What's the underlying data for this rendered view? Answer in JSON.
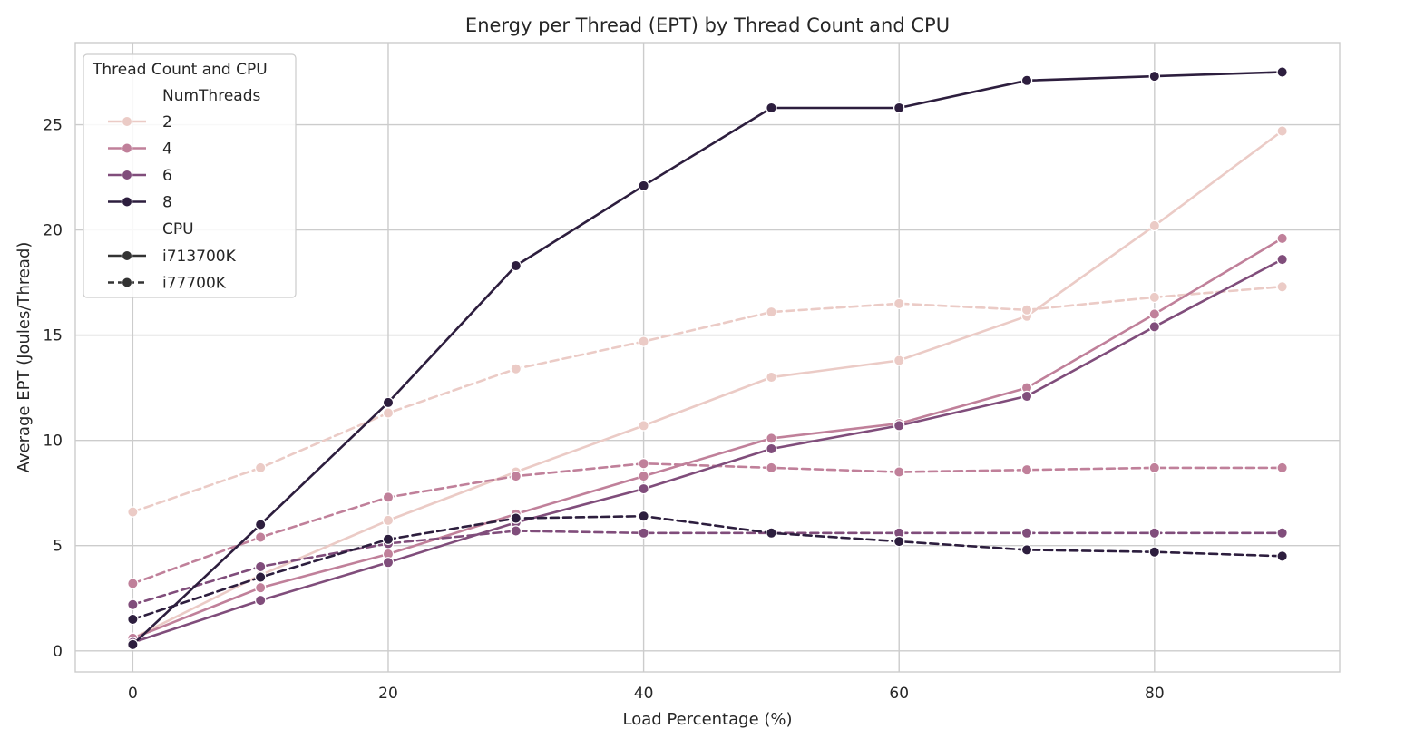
{
  "chart_data": {
    "type": "line",
    "title": "Energy per Thread (EPT) by Thread Count and CPU",
    "xlabel": "Load Percentage (%)",
    "ylabel": "Average EPT (Joules/Thread)",
    "xlim": [
      -4.5,
      94.5
    ],
    "ylim": [
      -1.0,
      28.9
    ],
    "xticks": [
      0,
      20,
      40,
      60,
      80
    ],
    "yticks": [
      0,
      5,
      10,
      15,
      20,
      25
    ],
    "grid": true,
    "x": [
      0,
      10,
      20,
      30,
      40,
      50,
      60,
      70,
      80,
      90
    ],
    "legend": {
      "title": "Thread Count and CPU",
      "placement": "top-left",
      "hue_title": "NumThreads",
      "style_title": "CPU",
      "hue_entries": [
        {
          "label": "2",
          "color": "#ebcbc6"
        },
        {
          "label": "4",
          "color": "#c0809a"
        },
        {
          "label": "6",
          "color": "#804d7b"
        },
        {
          "label": "8",
          "color": "#2d1e3e"
        }
      ],
      "style_entries": [
        {
          "label": "i713700K",
          "dash": "solid",
          "color": "#333333"
        },
        {
          "label": "i77700K",
          "dash": "dashed",
          "color": "#333333"
        }
      ]
    },
    "series": [
      {
        "threads": "2",
        "cpu": "i713700K",
        "color": "#ebcbc6",
        "dash": "solid",
        "values": [
          0.6,
          3.6,
          6.2,
          8.5,
          10.7,
          13.0,
          13.8,
          15.9,
          20.2,
          24.7
        ]
      },
      {
        "threads": "2",
        "cpu": "i77700K",
        "color": "#ebcbc6",
        "dash": "dashed",
        "values": [
          6.6,
          8.7,
          11.3,
          13.4,
          14.7,
          16.1,
          16.5,
          16.2,
          16.8,
          17.3
        ]
      },
      {
        "threads": "4",
        "cpu": "i713700K",
        "color": "#c0809a",
        "dash": "solid",
        "values": [
          0.6,
          3.0,
          4.6,
          6.5,
          8.3,
          10.1,
          10.8,
          12.5,
          16.0,
          19.6
        ]
      },
      {
        "threads": "4",
        "cpu": "i77700K",
        "color": "#c0809a",
        "dash": "dashed",
        "values": [
          3.2,
          5.4,
          7.3,
          8.3,
          8.9,
          8.7,
          8.5,
          8.6,
          8.7,
          8.7
        ]
      },
      {
        "threads": "6",
        "cpu": "i713700K",
        "color": "#804d7b",
        "dash": "solid",
        "values": [
          0.4,
          2.4,
          4.2,
          6.1,
          7.7,
          9.6,
          10.7,
          12.1,
          15.4,
          18.6
        ]
      },
      {
        "threads": "6",
        "cpu": "i77700K",
        "color": "#804d7b",
        "dash": "dashed",
        "values": [
          2.2,
          4.0,
          5.1,
          5.7,
          5.6,
          5.6,
          5.6,
          5.6,
          5.6,
          5.6
        ]
      },
      {
        "threads": "8",
        "cpu": "i713700K",
        "color": "#2d1e3e",
        "dash": "solid",
        "values": [
          0.3,
          6.0,
          11.8,
          18.3,
          22.1,
          25.8,
          25.8,
          27.1,
          27.3,
          27.5
        ]
      },
      {
        "threads": "8",
        "cpu": "i77700K",
        "color": "#2d1e3e",
        "dash": "dashed",
        "values": [
          1.5,
          3.5,
          5.3,
          6.3,
          6.4,
          5.6,
          5.2,
          4.8,
          4.7,
          4.5
        ]
      }
    ]
  }
}
